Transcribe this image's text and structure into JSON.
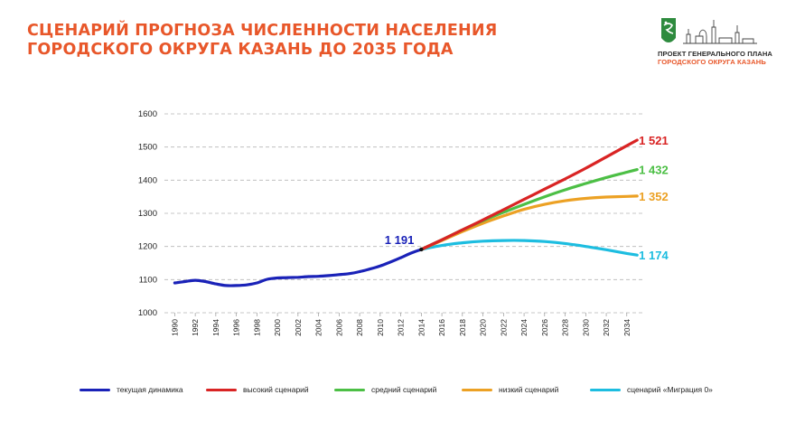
{
  "header": {
    "title_line1": "СЦЕНАРИЙ ПРОГНОЗА ЧИСЛЕННОСТИ НАСЕЛЕНИЯ",
    "title_line2": "ГОРОДСКОГО ОКРУГА КАЗАНЬ ДО 2035 ГОДА"
  },
  "logo": {
    "line1": "ПРОЕКТ ГЕНЕРАЛЬНОГО ПЛАНА",
    "line2": "ГОРОДСКОГО ОКРУГА КАЗАНЬ",
    "emblem_icon": "kazan-coat-of-arms-icon",
    "skyline_icon": "kremlin-skyline-icon",
    "colors": {
      "emblem": "#2e8b3e",
      "text_primary": "#2a2a2a",
      "text_accent": "#e8572a"
    }
  },
  "chart_data": {
    "type": "line",
    "title": "",
    "xlabel": "",
    "ylabel": "",
    "xlim": [
      1989,
      2035.6
    ],
    "ylim": [
      1000,
      1600
    ],
    "y_ticks": [
      "1000",
      "1100",
      "1200",
      "1300",
      "1400",
      "1500",
      "1600"
    ],
    "x_ticks": [
      "1990",
      "1992",
      "1994",
      "1996",
      "1998",
      "2000",
      "2002",
      "2004",
      "2006",
      "2008",
      "2010",
      "2012",
      "2014",
      "2016",
      "2018",
      "2020",
      "2022",
      "2024",
      "2026",
      "2028",
      "2030",
      "2032",
      "2034"
    ],
    "grid": "horizontal-dashed",
    "series": [
      {
        "name": "текущая динамика",
        "color": "#1a22b8",
        "x": [
          1990,
          1991,
          1992,
          1993,
          1994,
          1995,
          1996,
          1997,
          1998,
          1999,
          2000,
          2001,
          2002,
          2003,
          2004,
          2005,
          2006,
          2007,
          2008,
          2009,
          2010,
          2011,
          2012,
          2013,
          2014
        ],
        "values": [
          1090,
          1094,
          1098,
          1094,
          1087,
          1082,
          1082,
          1084,
          1090,
          1101,
          1105,
          1106,
          1107,
          1109,
          1110,
          1112,
          1115,
          1118,
          1124,
          1132,
          1141,
          1153,
          1166,
          1180,
          1191
        ]
      },
      {
        "name": "высокий сценарий",
        "color": "#d92424",
        "x": [
          2014,
          2016,
          2018,
          2020,
          2022,
          2024,
          2026,
          2028,
          2030,
          2032,
          2034,
          2035
        ],
        "values": [
          1191,
          1220,
          1250,
          1280,
          1311,
          1342,
          1373,
          1404,
          1436,
          1470,
          1504,
          1521
        ]
      },
      {
        "name": "средний сценарий",
        "color": "#4cbf45",
        "x": [
          2014,
          2016,
          2018,
          2020,
          2022,
          2024,
          2026,
          2028,
          2030,
          2032,
          2034,
          2035
        ],
        "values": [
          1191,
          1220,
          1250,
          1278,
          1303,
          1327,
          1350,
          1371,
          1390,
          1408,
          1424,
          1432
        ]
      },
      {
        "name": "низкий сценарий",
        "color": "#eca124",
        "x": [
          2014,
          2016,
          2018,
          2020,
          2022,
          2024,
          2026,
          2028,
          2030,
          2032,
          2034,
          2035
        ],
        "values": [
          1191,
          1218,
          1245,
          1270,
          1292,
          1312,
          1327,
          1338,
          1345,
          1349,
          1351,
          1352
        ]
      },
      {
        "name": "сценарий «Миграция 0»",
        "color": "#1dbde0",
        "x": [
          2014,
          2016,
          2018,
          2020,
          2022,
          2024,
          2026,
          2028,
          2030,
          2032,
          2034,
          2035
        ],
        "values": [
          1191,
          1203,
          1211,
          1216,
          1218,
          1218,
          1215,
          1209,
          1200,
          1190,
          1179,
          1174
        ]
      }
    ],
    "annotations": [
      {
        "text": "1 191",
        "x": 2014,
        "y": 1191,
        "color": "#1a22b8"
      },
      {
        "text": "1 521",
        "x": 2035,
        "y": 1521,
        "color": "#d92424"
      },
      {
        "text": "1 432",
        "x": 2035,
        "y": 1432,
        "color": "#4cbf45"
      },
      {
        "text": "1 352",
        "x": 2035,
        "y": 1352,
        "color": "#eca124"
      },
      {
        "text": "1 174",
        "x": 2035,
        "y": 1174,
        "color": "#1dbde0"
      }
    ],
    "legend": {
      "placement": "bottom",
      "items": [
        {
          "label": "текущая динамика",
          "color": "#1a22b8"
        },
        {
          "label": "высокий сценарий",
          "color": "#d92424"
        },
        {
          "label": "средний сценарий",
          "color": "#4cbf45"
        },
        {
          "label": "низкий сценарий",
          "color": "#eca124"
        },
        {
          "label": "сценарий «Миграция 0»",
          "color": "#1dbde0"
        }
      ]
    }
  }
}
